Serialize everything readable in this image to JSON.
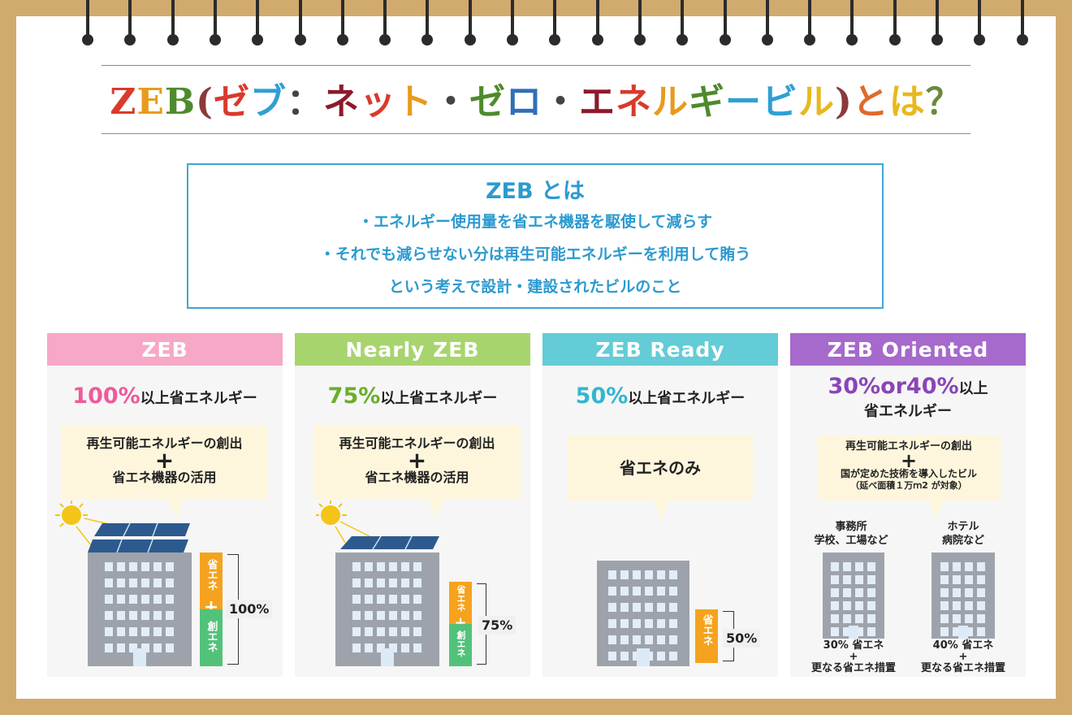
{
  "title": {
    "parts": [
      {
        "text": "Z",
        "color": "#d93a2b"
      },
      {
        "text": "E",
        "color": "#e89b1c"
      },
      {
        "text": "B",
        "color": "#4f8a2c"
      },
      {
        "text": "(",
        "color": "#8b3a3a"
      },
      {
        "text": "ゼ",
        "color": "#d93a2b"
      },
      {
        "text": "ブ",
        "color": "#2f9fd6"
      },
      {
        "text": "：",
        "color": "#444444"
      },
      {
        "text": "ネ",
        "color": "#8b1a2b"
      },
      {
        "text": "ッ",
        "color": "#d93a2b"
      },
      {
        "text": "ト",
        "color": "#e89b1c"
      },
      {
        "text": "・",
        "color": "#444444"
      },
      {
        "text": "ゼ",
        "color": "#4f8a2c"
      },
      {
        "text": "ロ",
        "color": "#2f6fb8"
      },
      {
        "text": "・",
        "color": "#444444"
      },
      {
        "text": "エ",
        "color": "#8b1a2b"
      },
      {
        "text": "ネ",
        "color": "#d93a2b"
      },
      {
        "text": "ル",
        "color": "#e89b1c"
      },
      {
        "text": "ギ",
        "color": "#4f8a2c"
      },
      {
        "text": "ー",
        "color": "#2f9fd6"
      },
      {
        "text": "ビ",
        "color": "#2f9fd6"
      },
      {
        "text": "ル",
        "color": "#e8b81c"
      },
      {
        "text": ")",
        "color": "#8b3a3a"
      },
      {
        "text": "と",
        "color": "#e06a2a"
      },
      {
        "text": "は",
        "color": "#e8b81c"
      },
      {
        "text": "？",
        "color": "#6b8a3c"
      }
    ]
  },
  "definition": {
    "heading": "ZEB とは",
    "line1": "・エネルギー使用量を省エネ機器を駆使して減らす",
    "line2": "・それでも減らせない分は再生可能エネルギーを利用して賄う",
    "line3": "という考えで設計・建設されたビルのこと"
  },
  "colors": {
    "zeb": "#f7a7c7",
    "nearly": "#a8d46e",
    "ready": "#63ccd6",
    "oriented": "#a669cc",
    "accent_text_zeb": "#ef5a9b",
    "accent_text_nearly": "#6aae2a",
    "accent_text_ready": "#34b6cf",
    "accent_text_oriented": "#8a45b8",
    "save_bar": "#f5a31e",
    "create_bar": "#52c27a"
  },
  "panels": {
    "zeb": {
      "header": "ZEB",
      "percent": "100%",
      "suffix": "以上省エネルギー",
      "bubble_line1": "再生可能エネルギーの創出",
      "plus": "+",
      "bubble_line2": "省エネ機器の活用",
      "bar_top": "省エネ",
      "bar_plus": "+",
      "bar_bottom": "創エネ",
      "bar_value": "100%"
    },
    "nearly": {
      "header": "Nearly ZEB",
      "percent": "75%",
      "suffix": "以上省エネルギー",
      "bubble_line1": "再生可能エネルギーの創出",
      "plus": "+",
      "bubble_line2": "省エネ機器の活用",
      "bar_top": "省エネ",
      "bar_plus": "+",
      "bar_bottom": "創エネ",
      "bar_value": "75%"
    },
    "ready": {
      "header": "ZEB Ready",
      "percent": "50%",
      "suffix": "以上省エネルギー",
      "bubble_line1": "省エネのみ",
      "bar_top": "省エネ",
      "bar_value": "50%"
    },
    "oriented": {
      "header": "ZEB Oriented",
      "percent": "30%or40%",
      "suffix": "以上",
      "suffix2": "省エネルギー",
      "bubble_line1": "再生可能エネルギーの創出",
      "plus": "+",
      "bubble_line2": "国が定めた技術を導入したビル",
      "bubble_line3": "（延べ面積１万ｍ2 が対象）",
      "left_cap1": "事務所",
      "left_cap2": "学校、工場など",
      "right_cap1": "ホテル",
      "right_cap2": "病院など",
      "left_bottom1": "30% 省エネ",
      "left_bottom2": "+",
      "left_bottom3": "更なる省エネ措置",
      "right_bottom1": "40% 省エネ",
      "right_bottom2": "+",
      "right_bottom3": "更なる省エネ措置"
    }
  }
}
